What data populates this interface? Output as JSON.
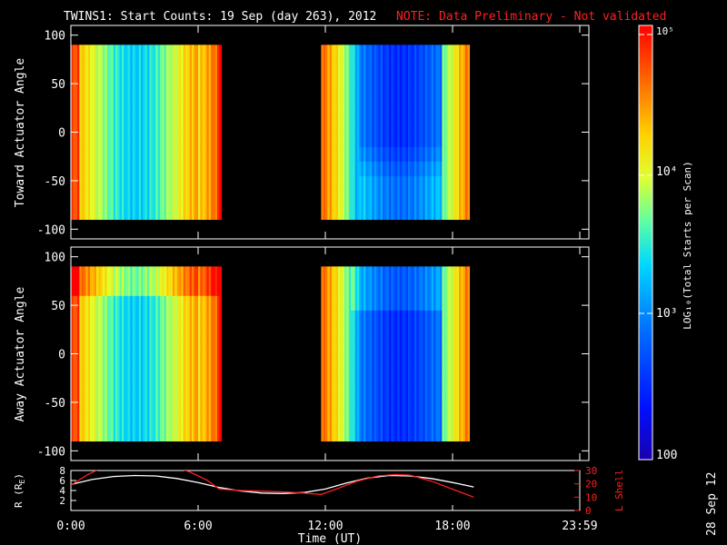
{
  "title": "TWINS1: Start Counts: 19 Sep (day 263), 2012",
  "note": "NOTE: Data Preliminary - Not validated",
  "date_stamp": "28 Sep 12",
  "colorbar": {
    "label": "LOG₁₀(Total Starts per Scan)",
    "tick_top": "10⁵",
    "tick_mid": "10⁴",
    "tick_low": "10³",
    "tick_bottom": "100"
  },
  "chart_data": [
    {
      "type": "heatmap",
      "ylabel": "Toward Actuator Angle",
      "ylim": [
        -110,
        110
      ],
      "y_ticks": [
        "100",
        "50",
        "0",
        "-50",
        "-100"
      ],
      "data_blocks_hours": [
        [
          0.0,
          7.0
        ],
        [
          11.8,
          18.8
        ]
      ],
      "data_angle_range": [
        -90,
        90
      ],
      "color_scale": "log10",
      "value_range": [
        100,
        100000
      ]
    },
    {
      "type": "heatmap",
      "ylabel": "Away Actuator Angle",
      "ylim": [
        -110,
        110
      ],
      "y_ticks": [
        "100",
        "50",
        "0",
        "-50",
        "-100"
      ],
      "data_blocks_hours": [
        [
          0.0,
          7.0
        ],
        [
          11.8,
          18.8
        ]
      ],
      "data_angle_range": [
        -90,
        90
      ],
      "color_scale": "log10",
      "value_range": [
        100,
        100000
      ]
    },
    {
      "type": "line",
      "xlabel": "Time (UT)",
      "x_ticks": [
        "0:00",
        "6:00",
        "12:00",
        "18:00",
        "23:59"
      ],
      "ylabel_left": "R (R",
      "ylabel_left_sub": "E",
      "ylabel_left_end": ")",
      "ylabel_right": "L Shell",
      "y_left_ticks": [
        "8",
        "6",
        "4",
        "2"
      ],
      "y_right_ticks": [
        "30",
        "20",
        "10",
        "0"
      ],
      "ylim_left": [
        0,
        8
      ],
      "ylim_right": [
        0,
        30
      ],
      "series": [
        {
          "name": "R",
          "color": "#ffffff",
          "x": [
            0,
            1,
            2,
            3,
            4,
            5,
            6,
            7,
            8,
            9,
            10,
            11,
            12,
            13,
            14,
            15,
            16,
            17,
            18,
            19
          ],
          "y": [
            5.2,
            6.2,
            6.8,
            7.0,
            6.9,
            6.4,
            5.6,
            4.6,
            3.9,
            3.5,
            3.4,
            3.6,
            4.3,
            5.5,
            6.5,
            7.0,
            6.9,
            6.4,
            5.6,
            4.7
          ]
        },
        {
          "name": "L Shell",
          "color": "#ff2020",
          "x": [
            0,
            0.8,
            1.6,
            2.4,
            3.2,
            4.0,
            4.8,
            5.6,
            6.4,
            7.0,
            8,
            9,
            10,
            11,
            11.8,
            12.5,
            13.5,
            14.5,
            15.3,
            16,
            17,
            18,
            19
          ],
          "y": [
            19,
            27,
            33,
            35,
            36,
            35,
            33,
            29,
            23,
            16,
            15,
            14.5,
            14,
            13,
            12,
            16,
            22,
            26,
            27,
            26.5,
            22,
            16,
            10
          ]
        }
      ]
    }
  ]
}
